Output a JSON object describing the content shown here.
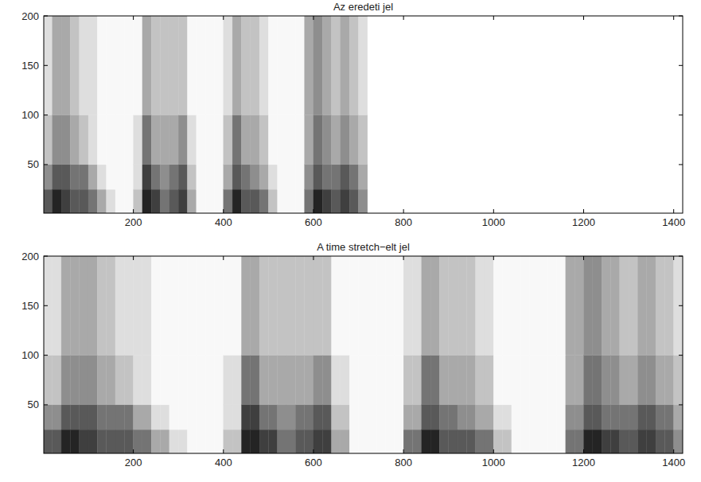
{
  "chart_data": [
    {
      "type": "heatmap",
      "title": "Az eredeti jel",
      "xlim": [
        1,
        1420
      ],
      "ylim": [
        1,
        200
      ],
      "xticks": [
        200,
        400,
        600,
        800,
        1000,
        1200,
        1400
      ],
      "yticks": [
        50,
        100,
        150,
        200
      ],
      "zlim": [
        0,
        9
      ],
      "x_bins": [
        1,
        20,
        40,
        60,
        80,
        100,
        120,
        140,
        160,
        180,
        200,
        220,
        240,
        260,
        280,
        300,
        320,
        340,
        360,
        380,
        400,
        420,
        440,
        460,
        480,
        500,
        520,
        540,
        560,
        580,
        600,
        620,
        640,
        660,
        680,
        700,
        720
      ],
      "y_bins": [
        1,
        25,
        50,
        100,
        200
      ],
      "cells": [
        [
          6,
          8,
          7,
          6,
          6,
          5,
          3,
          1,
          0,
          0,
          2,
          8,
          7,
          5,
          6,
          7,
          3,
          0,
          0,
          0,
          5,
          8,
          6,
          6,
          5,
          2,
          0,
          0,
          0,
          5,
          8,
          7,
          6,
          7,
          6,
          4
        ],
        [
          4,
          6,
          6,
          5,
          5,
          3,
          1,
          0,
          0,
          0,
          1,
          7,
          5,
          4,
          5,
          6,
          2,
          0,
          0,
          0,
          3,
          6,
          5,
          4,
          3,
          1,
          0,
          0,
          0,
          4,
          6,
          5,
          5,
          6,
          5,
          3
        ],
        [
          2,
          4,
          4,
          3,
          2,
          1,
          0,
          0,
          0,
          0,
          1,
          5,
          3,
          3,
          3,
          4,
          1,
          0,
          0,
          0,
          2,
          5,
          3,
          3,
          2,
          0,
          0,
          0,
          0,
          3,
          5,
          4,
          3,
          4,
          3,
          2
        ],
        [
          1,
          3,
          3,
          2,
          1,
          1,
          0,
          0,
          0,
          0,
          0,
          3,
          2,
          2,
          2,
          2,
          0,
          0,
          0,
          0,
          1,
          3,
          2,
          2,
          1,
          0,
          0,
          0,
          0,
          3,
          4,
          3,
          2,
          3,
          2,
          1
        ]
      ]
    },
    {
      "type": "heatmap",
      "title": "A time stretch−elt jel",
      "xlim": [
        1,
        1420
      ],
      "ylim": [
        1,
        200
      ],
      "xticks": [
        200,
        400,
        600,
        800,
        1000,
        1200,
        1400
      ],
      "yticks": [
        50,
        100,
        150,
        200
      ],
      "zlim": [
        0,
        9
      ],
      "x_bins": [
        1,
        20,
        40,
        60,
        80,
        100,
        120,
        140,
        160,
        180,
        200,
        220,
        240,
        260,
        280,
        300,
        320,
        340,
        360,
        380,
        400,
        420,
        440,
        460,
        480,
        500,
        520,
        540,
        560,
        580,
        600,
        620,
        640,
        660,
        680,
        700,
        720,
        740,
        760,
        780,
        800,
        820,
        840,
        860,
        880,
        900,
        920,
        940,
        960,
        980,
        1000,
        1020,
        1040,
        1060,
        1080,
        1100,
        1120,
        1140,
        1160,
        1180,
        1200,
        1220,
        1240,
        1260,
        1280,
        1300,
        1320,
        1340,
        1360,
        1380,
        1400,
        1420
      ],
      "y_bins": [
        1,
        25,
        50,
        100,
        200
      ],
      "cells": [
        [
          6,
          6,
          8,
          8,
          7,
          7,
          6,
          6,
          6,
          6,
          5,
          5,
          3,
          3,
          1,
          1,
          0,
          0,
          0,
          0,
          2,
          2,
          8,
          8,
          7,
          7,
          5,
          5,
          6,
          6,
          7,
          7,
          3,
          3,
          0,
          0,
          0,
          0,
          0,
          0,
          5,
          5,
          8,
          8,
          6,
          6,
          6,
          6,
          5,
          5,
          2,
          2,
          0,
          0,
          0,
          0,
          0,
          0,
          5,
          5,
          8,
          8,
          7,
          7,
          6,
          6,
          7,
          7,
          6,
          6,
          4
        ],
        [
          4,
          4,
          6,
          6,
          6,
          6,
          5,
          5,
          5,
          5,
          3,
          3,
          1,
          1,
          0,
          0,
          0,
          0,
          0,
          0,
          1,
          1,
          7,
          7,
          5,
          5,
          4,
          4,
          5,
          5,
          6,
          6,
          2,
          2,
          0,
          0,
          0,
          0,
          0,
          0,
          3,
          3,
          6,
          6,
          5,
          5,
          4,
          4,
          3,
          3,
          1,
          1,
          0,
          0,
          0,
          0,
          0,
          0,
          4,
          4,
          6,
          6,
          5,
          5,
          5,
          5,
          6,
          6,
          5,
          5,
          3
        ],
        [
          2,
          2,
          4,
          4,
          4,
          4,
          3,
          3,
          2,
          2,
          1,
          1,
          0,
          0,
          0,
          0,
          0,
          0,
          0,
          0,
          1,
          1,
          5,
          5,
          3,
          3,
          3,
          3,
          3,
          3,
          4,
          4,
          1,
          1,
          0,
          0,
          0,
          0,
          0,
          0,
          2,
          2,
          5,
          5,
          3,
          3,
          3,
          3,
          2,
          2,
          0,
          0,
          0,
          0,
          0,
          0,
          0,
          0,
          3,
          3,
          5,
          5,
          4,
          4,
          3,
          3,
          4,
          4,
          3,
          3,
          2
        ],
        [
          1,
          1,
          3,
          3,
          3,
          3,
          2,
          2,
          1,
          1,
          1,
          1,
          0,
          0,
          0,
          0,
          0,
          0,
          0,
          0,
          0,
          0,
          3,
          3,
          2,
          2,
          2,
          2,
          2,
          2,
          2,
          2,
          0,
          0,
          0,
          0,
          0,
          0,
          0,
          0,
          1,
          1,
          3,
          3,
          2,
          2,
          2,
          2,
          1,
          1,
          0,
          0,
          0,
          0,
          0,
          0,
          0,
          0,
          3,
          3,
          4,
          4,
          3,
          3,
          2,
          2,
          3,
          3,
          2,
          2,
          1
        ]
      ]
    }
  ]
}
